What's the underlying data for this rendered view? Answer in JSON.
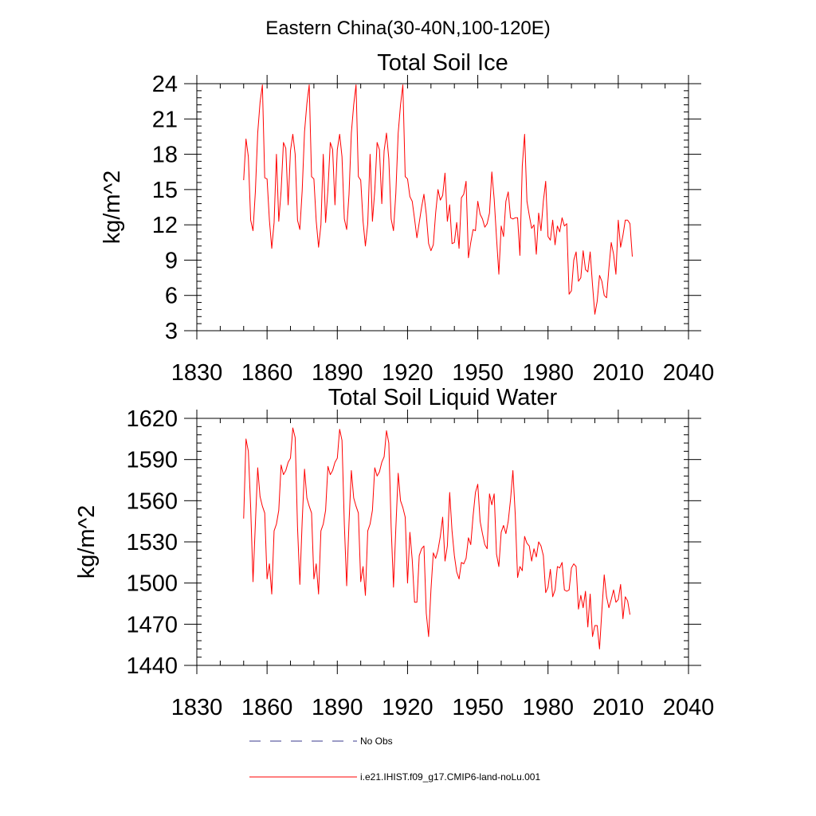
{
  "figure": {
    "title": "Eastern China(30-40N,100-120E)",
    "legend": [
      {
        "label": "No Obs",
        "color": "#3a3a8c",
        "style": "dashed"
      },
      {
        "label": "i.e21.IHIST.f09_g17.CMIP6-land-noLu.001",
        "color": "#ff0000",
        "style": "solid"
      }
    ]
  },
  "chart_data": [
    {
      "type": "line",
      "title": "Total Soil Ice",
      "xlabel": "",
      "ylabel": "kg/m^2",
      "xlim": [
        1830,
        2040
      ],
      "ylim": [
        3,
        24
      ],
      "xticks": [
        1830,
        1860,
        1890,
        1920,
        1950,
        1980,
        2010,
        2040
      ],
      "yticks": [
        3,
        6,
        9,
        12,
        15,
        18,
        21,
        24
      ],
      "grid": false,
      "series": [
        {
          "name": "i.e21.IHIST.f09_g17.CMIP6-land-noLu.001",
          "color": "#ff0000",
          "x_start": 1850,
          "x_step": 1,
          "values": [
            15.8,
            19.3,
            17.8,
            12.4,
            11.5,
            14.8,
            19.8,
            22.4,
            23.9,
            16.0,
            15.9,
            12.4,
            10.0,
            12.2,
            18.0,
            12.3,
            14.9,
            19.0,
            18.5,
            13.7,
            18.3,
            19.7,
            18.0,
            12.4,
            11.6,
            14.9,
            19.9,
            22.3,
            23.9,
            16.1,
            15.9,
            12.3,
            10.1,
            12.0,
            18.0,
            12.2,
            15.0,
            19.0,
            18.4,
            13.7,
            18.4,
            19.7,
            17.8,
            12.5,
            11.6,
            14.6,
            19.8,
            22.2,
            23.9,
            16.1,
            15.8,
            12.3,
            10.2,
            12.1,
            18.0,
            12.3,
            14.9,
            19.0,
            18.4,
            13.8,
            18.3,
            19.8,
            17.6,
            12.5,
            11.5,
            14.7,
            19.8,
            22.2,
            23.9,
            16.1,
            15.9,
            14.4,
            14.0,
            12.5,
            10.9,
            12.2,
            13.5,
            14.6,
            12.9,
            10.4,
            9.8,
            10.3,
            13.0,
            15.0,
            14.1,
            14.5,
            16.4,
            12.3,
            13.7,
            10.4,
            10.5,
            12.2,
            10.0,
            14.3,
            14.6,
            15.7,
            9.2,
            10.5,
            11.6,
            11.5,
            14.0,
            12.9,
            12.5,
            11.8,
            12.1,
            13.0,
            16.5,
            14.2,
            10.9,
            7.8,
            11.9,
            11.0,
            14.0,
            14.8,
            12.6,
            12.5,
            12.6,
            12.6,
            9.4,
            17.0,
            19.7,
            14.0,
            12.8,
            11.7,
            12.0,
            9.5,
            13.0,
            11.5,
            14.0,
            15.7,
            11.0,
            10.7,
            12.4,
            10.3,
            11.9,
            11.4,
            12.6,
            11.9,
            12.1,
            6.1,
            6.4,
            9.0,
            9.7,
            7.2,
            7.5,
            9.8,
            8.2,
            8.0,
            9.7,
            6.9,
            4.4,
            5.5,
            7.7,
            7.2,
            6.0,
            5.8,
            8.3,
            10.5,
            9.5,
            7.8,
            12.4,
            10.1,
            11.1,
            12.4,
            12.4,
            12.1,
            9.3
          ]
        }
      ]
    },
    {
      "type": "line",
      "title": "Total Soil Liquid Water",
      "xlabel": "",
      "ylabel": "kg/m^2",
      "xlim": [
        1830,
        2040
      ],
      "ylim": [
        1440,
        1620
      ],
      "xticks": [
        1830,
        1860,
        1890,
        1920,
        1950,
        1980,
        2010,
        2040
      ],
      "yticks": [
        1440,
        1470,
        1500,
        1530,
        1560,
        1590,
        1620
      ],
      "grid": false,
      "series": [
        {
          "name": "i.e21.IHIST.f09_g17.CMIP6-land-noLu.001",
          "color": "#ff0000",
          "x_start": 1850,
          "x_step": 1,
          "values": [
            1547,
            1605,
            1596,
            1555,
            1501,
            1543,
            1584,
            1563,
            1556,
            1551,
            1503,
            1514,
            1492,
            1538,
            1543,
            1553,
            1586,
            1579,
            1582,
            1588,
            1591,
            1613,
            1606,
            1541,
            1499,
            1545,
            1583,
            1562,
            1556,
            1551,
            1503,
            1514,
            1492,
            1538,
            1543,
            1553,
            1585,
            1579,
            1582,
            1588,
            1591,
            1612,
            1604,
            1543,
            1498,
            1544,
            1582,
            1562,
            1556,
            1551,
            1501,
            1512,
            1491,
            1538,
            1543,
            1553,
            1584,
            1578,
            1581,
            1588,
            1592,
            1611,
            1602,
            1541,
            1497,
            1540,
            1580,
            1560,
            1555,
            1548,
            1500,
            1537,
            1517,
            1486,
            1486,
            1520,
            1525,
            1527,
            1478,
            1461,
            1495,
            1522,
            1518,
            1524,
            1534,
            1548,
            1516,
            1527,
            1566,
            1538,
            1520,
            1508,
            1503,
            1515,
            1514,
            1518,
            1533,
            1528,
            1549,
            1566,
            1572,
            1545,
            1536,
            1528,
            1525,
            1565,
            1557,
            1565,
            1521,
            1512,
            1537,
            1542,
            1536,
            1545,
            1561,
            1582,
            1550,
            1504,
            1512,
            1509,
            1534,
            1529,
            1527,
            1516,
            1525,
            1519,
            1530,
            1527,
            1520,
            1493,
            1497,
            1510,
            1490,
            1495,
            1512,
            1511,
            1515,
            1495,
            1494,
            1495,
            1511,
            1514,
            1512,
            1481,
            1491,
            1482,
            1494,
            1468,
            1492,
            1461,
            1469,
            1469,
            1452,
            1480,
            1506,
            1490,
            1482,
            1488,
            1495,
            1486,
            1488,
            1499,
            1474,
            1490,
            1487,
            1477
          ]
        }
      ]
    }
  ]
}
